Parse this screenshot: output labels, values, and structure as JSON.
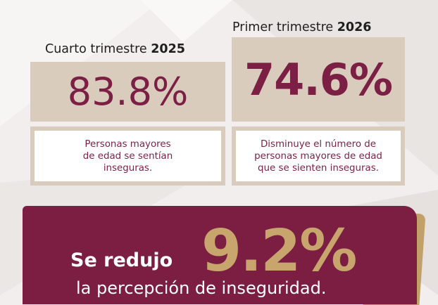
{
  "periods": [
    {
      "label": "Cuarto trimestre",
      "year": "2025",
      "value": "83.8%",
      "description_lines": [
        "Personas mayores",
        "de edad se sentían",
        "inseguras."
      ]
    },
    {
      "label": "Primer trimestre",
      "year": "2026",
      "value": "74.6%",
      "description_lines": [
        "Disminuye el número de",
        "personas mayores de edad",
        "que se sienten inseguras."
      ]
    }
  ],
  "banner": {
    "lead": "Se redujo",
    "value": "9.2%",
    "caption": "la percepción de inseguridad."
  },
  "colors": {
    "maroon": "#7b1e42",
    "gold": "#c2a06a",
    "beige": "#d9ccbd",
    "background": "#f1eeed"
  }
}
